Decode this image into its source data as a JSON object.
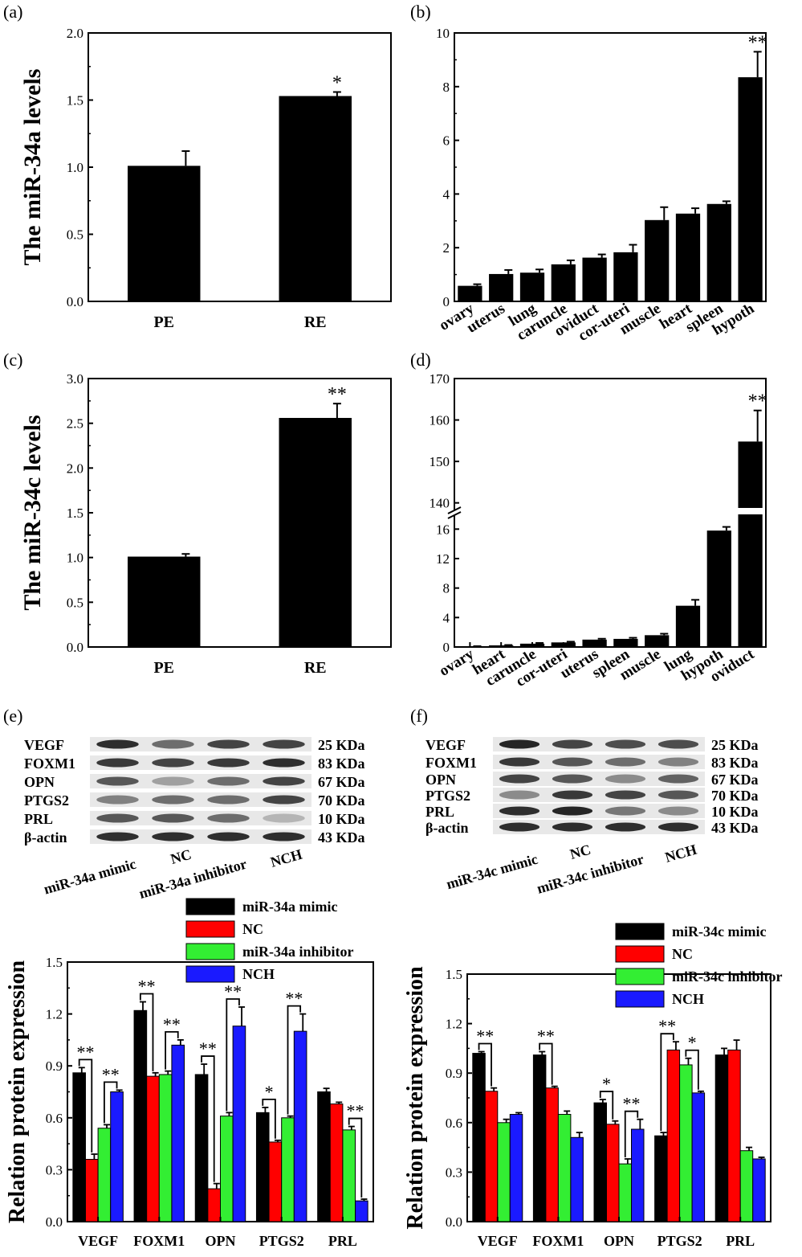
{
  "panels": {
    "a": "(a)",
    "b": "(b)",
    "c": "(c)",
    "d": "(d)",
    "e": "(e)",
    "f": "(f)"
  },
  "chart_data": [
    {
      "id": "a",
      "type": "bar",
      "ylabel": "The miR-34a levels",
      "xlabel": "",
      "categories": [
        "PE",
        "RE"
      ],
      "values": [
        1.01,
        1.53
      ],
      "errors": [
        0.11,
        0.03
      ],
      "sig": [
        "",
        "*"
      ],
      "ylim": [
        0,
        2.0
      ],
      "yticks": [
        "0.0",
        "0.5",
        "1.0",
        "1.5",
        "2.0"
      ]
    },
    {
      "id": "b",
      "type": "bar",
      "ylabel": "",
      "xlabel": "",
      "categories": [
        "ovary",
        "uterus",
        "lung",
        "caruncle",
        "oviduct",
        "cor-uteri",
        "muscle",
        "heart",
        "spleen",
        "hypoth"
      ],
      "values": [
        0.58,
        1.02,
        1.07,
        1.38,
        1.63,
        1.83,
        3.03,
        3.27,
        3.63,
        8.35
      ],
      "errors": [
        0.06,
        0.15,
        0.12,
        0.15,
        0.12,
        0.28,
        0.48,
        0.2,
        0.1,
        0.95
      ],
      "sig": [
        "",
        "",
        "",
        "",
        "",
        "",
        "",
        "",
        "",
        "**"
      ],
      "ylim": [
        0,
        10
      ],
      "yticks": [
        "0",
        "2",
        "4",
        "6",
        "8",
        "10"
      ]
    },
    {
      "id": "c",
      "type": "bar",
      "ylabel": "The miR-34c levels",
      "xlabel": "",
      "categories": [
        "PE",
        "RE"
      ],
      "values": [
        1.01,
        2.56
      ],
      "errors": [
        0.03,
        0.16
      ],
      "sig": [
        "",
        "**"
      ],
      "ylim": [
        0,
        3.0
      ],
      "yticks": [
        "0.0",
        "0.5",
        "1.0",
        "1.5",
        "2.0",
        "2.5",
        "3.0"
      ]
    },
    {
      "id": "d",
      "type": "bar",
      "ylabel": "",
      "xlabel": "",
      "categories": [
        "ovary",
        "heart",
        "caruncle",
        "cor-uteri",
        "uterus",
        "spleen",
        "muscle",
        "lung",
        "hypoth",
        "oviduct"
      ],
      "values": [
        0.08,
        0.22,
        0.45,
        0.62,
        1.0,
        1.1,
        1.6,
        5.6,
        15.8,
        154.8
      ],
      "errors": [
        0.03,
        0.05,
        0.1,
        0.1,
        0.12,
        0.15,
        0.2,
        0.8,
        0.5,
        7.5
      ],
      "sig": [
        "",
        "",
        "",
        "",
        "",
        "",
        "",
        "",
        "",
        "**"
      ],
      "axis_break": [
        18,
        138
      ],
      "lower_range": [
        0,
        18
      ],
      "upper_range": [
        138,
        170
      ],
      "yticks_lower": [
        "0",
        "4",
        "8",
        "12",
        "16"
      ],
      "yticks_upper": [
        "140",
        "150",
        "160",
        "170"
      ]
    },
    {
      "id": "g",
      "type": "bar",
      "ylabel": "Relation protein expression",
      "xlabel": "",
      "categories": [
        "VEGF",
        "FOXM1",
        "OPN",
        "PTGS2",
        "PRL"
      ],
      "series": [
        {
          "name": "miR-34a mimic",
          "values": [
            0.86,
            1.22,
            0.85,
            0.63,
            0.75
          ],
          "errors": [
            0.03,
            0.05,
            0.06,
            0.03,
            0.02
          ]
        },
        {
          "name": "NC",
          "values": [
            0.36,
            0.84,
            0.19,
            0.46,
            0.68
          ],
          "errors": [
            0.03,
            0.02,
            0.03,
            0.01,
            0.01
          ]
        },
        {
          "name": "miR-34a inhibitor",
          "values": [
            0.54,
            0.85,
            0.61,
            0.6,
            0.53
          ],
          "errors": [
            0.02,
            0.02,
            0.02,
            0.01,
            0.02
          ]
        },
        {
          "name": "NCH",
          "values": [
            0.75,
            1.02,
            1.13,
            1.1,
            0.12
          ],
          "errors": [
            0.01,
            0.03,
            0.11,
            0.1,
            0.01
          ]
        }
      ],
      "sig": [
        {
          "cat": 0,
          "from": 0,
          "to": 1,
          "label": "**"
        },
        {
          "cat": 0,
          "from": 2,
          "to": 3,
          "label": "**"
        },
        {
          "cat": 1,
          "from": 0,
          "to": 1,
          "label": "**"
        },
        {
          "cat": 1,
          "from": 2,
          "to": 3,
          "label": "**"
        },
        {
          "cat": 2,
          "from": 0,
          "to": 1,
          "label": "**"
        },
        {
          "cat": 2,
          "from": 2,
          "to": 3,
          "label": "**"
        },
        {
          "cat": 3,
          "from": 0,
          "to": 1,
          "label": "*"
        },
        {
          "cat": 3,
          "from": 2,
          "to": 3,
          "label": "**"
        },
        {
          "cat": 4,
          "from": 2,
          "to": 3,
          "label": "**"
        }
      ],
      "ylim": [
        0,
        1.5
      ],
      "yticks": [
        "0.0",
        "0.3",
        "0.6",
        "0.9",
        "1.2",
        "1.5"
      ],
      "legend_position": "top"
    },
    {
      "id": "h",
      "type": "bar",
      "ylabel": "Relation protein expression",
      "xlabel": "",
      "categories": [
        "VEGF",
        "FOXM1",
        "OPN",
        "PTGS2",
        "PRL"
      ],
      "series": [
        {
          "name": "miR-34c mimic",
          "values": [
            1.02,
            1.01,
            0.72,
            0.52,
            1.01
          ],
          "errors": [
            0.01,
            0.02,
            0.02,
            0.02,
            0.04
          ]
        },
        {
          "name": "NC",
          "values": [
            0.79,
            0.81,
            0.59,
            1.04,
            1.04
          ],
          "errors": [
            0.02,
            0.01,
            0.02,
            0.05,
            0.06
          ]
        },
        {
          "name": "miR-34c inhibitor",
          "values": [
            0.6,
            0.65,
            0.35,
            0.95,
            0.43
          ],
          "errors": [
            0.02,
            0.02,
            0.03,
            0.04,
            0.02
          ]
        },
        {
          "name": "NCH",
          "values": [
            0.65,
            0.51,
            0.56,
            0.78,
            0.38
          ],
          "errors": [
            0.01,
            0.03,
            0.06,
            0.01,
            0.01
          ]
        }
      ],
      "sig": [
        {
          "cat": 0,
          "from": 0,
          "to": 1,
          "label": "**"
        },
        {
          "cat": 1,
          "from": 0,
          "to": 1,
          "label": "**"
        },
        {
          "cat": 2,
          "from": 0,
          "to": 1,
          "label": "*"
        },
        {
          "cat": 2,
          "from": 2,
          "to": 3,
          "label": "**"
        },
        {
          "cat": 3,
          "from": 0,
          "to": 1,
          "label": "**"
        },
        {
          "cat": 3,
          "from": 2,
          "to": 3,
          "label": "*"
        }
      ],
      "ylim": [
        0,
        1.5
      ],
      "yticks": [
        "0.0",
        "0.3",
        "0.6",
        "0.9",
        "1.2",
        "1.5"
      ],
      "legend_position": "top-right"
    }
  ],
  "blots": [
    {
      "id": "e",
      "proteins": [
        "VEGF",
        "FOXM1",
        "OPN",
        "PTGS2",
        "PRL",
        "β-actin"
      ],
      "sizes": [
        "25 KDa",
        "83 KDa",
        "67 KDa",
        "70 KDa",
        "10 KDa",
        "43 KDa"
      ],
      "lanes": [
        "miR-34a mimic",
        "NC",
        "miR-34a inhibitor",
        "NCH"
      ]
    },
    {
      "id": "f",
      "proteins": [
        "VEGF",
        "FOXM1",
        "OPN",
        "PTGS2",
        "PRL",
        "β-actin"
      ],
      "sizes": [
        "25 KDa",
        "83 KDa",
        "67 KDa",
        "70 KDa",
        "10 KDa",
        "43 KDa"
      ],
      "lanes": [
        "miR-34c mimic",
        "NC",
        "miR-34c inhibitor",
        "NCH"
      ]
    }
  ],
  "colors": {
    "black": "#000000",
    "red": "#ff0000",
    "green": "#33ee33",
    "blue": "#1a1aff"
  }
}
